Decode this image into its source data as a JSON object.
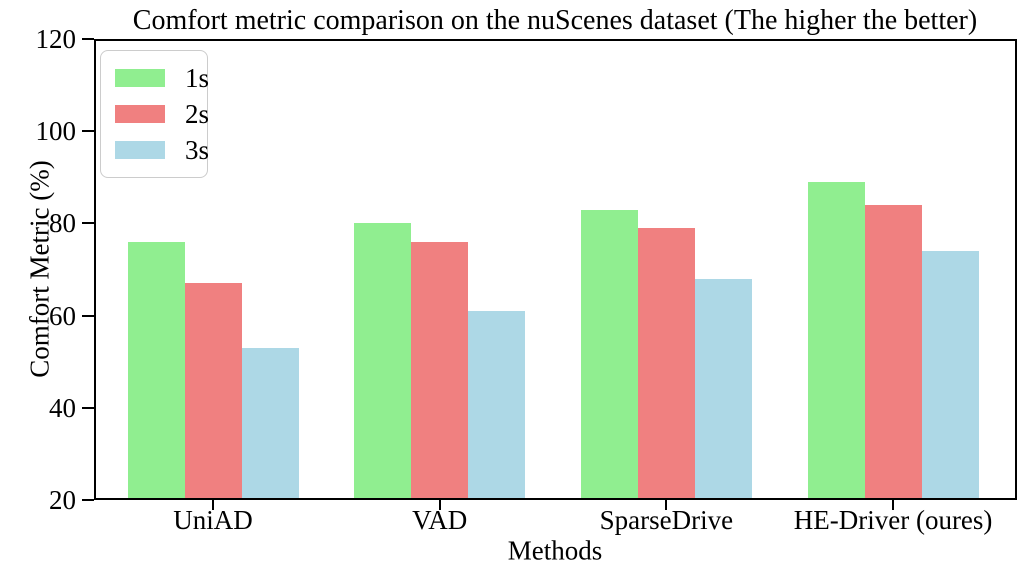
{
  "chart_data": {
    "type": "bar",
    "title": "Comfort metric comparison on the nuScenes dataset (The higher the better)",
    "xlabel": "Methods",
    "ylabel": "Comfort Metric (%)",
    "categories": [
      "UniAD",
      "VAD",
      "SparseDrive",
      "HE-Driver (oures)"
    ],
    "series": [
      {
        "name": "1s",
        "color": "#90EE90",
        "values": [
          76,
          80,
          83,
          89
        ]
      },
      {
        "name": "2s",
        "color": "#F08080",
        "values": [
          67,
          76,
          79,
          84
        ]
      },
      {
        "name": "3s",
        "color": "#ADD8E6",
        "values": [
          53,
          61,
          68,
          74
        ]
      }
    ],
    "ylim": [
      20,
      120
    ],
    "yticks": [
      20,
      40,
      60,
      80,
      100,
      120
    ],
    "grid": false,
    "legend_position": "upper left",
    "colors": {
      "axis": "#000000",
      "legend_border": "#cccccc",
      "background": "#ffffff"
    }
  }
}
